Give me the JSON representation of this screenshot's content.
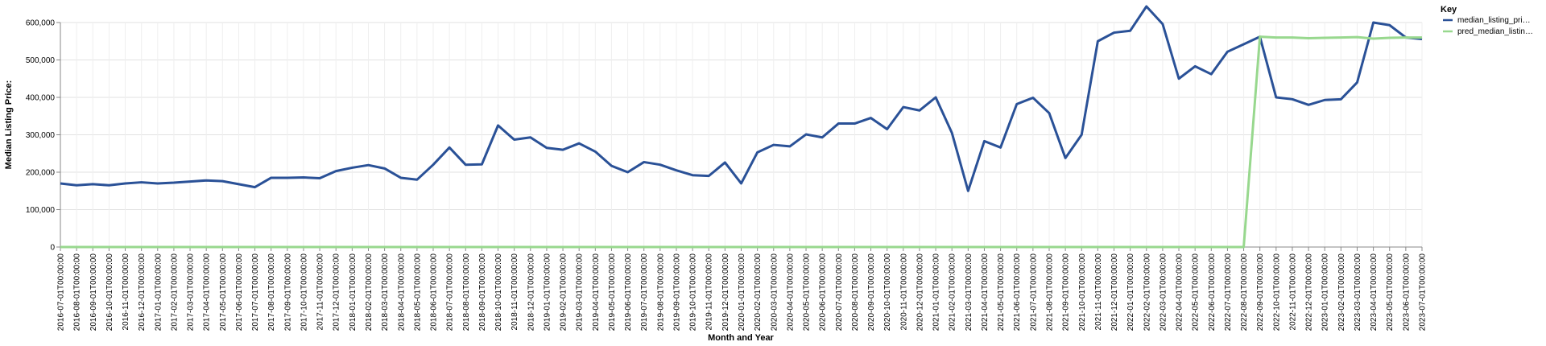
{
  "chart_data": {
    "type": "line",
    "xlabel": "Month and Year",
    "ylabel": "Median Listing Price:",
    "ylim": [
      0,
      600000
    ],
    "grid": true,
    "legend_placement": "right",
    "legend_title": "Key",
    "y_ticks": [
      "0",
      "100,000",
      "200,000",
      "300,000",
      "400,000",
      "500,000",
      "600,000"
    ],
    "x": [
      "2016-07-01T00:00:00",
      "2016-08-01T00:00:00",
      "2016-09-01T00:00:00",
      "2016-10-01T00:00:00",
      "2016-11-01T00:00:00",
      "2016-12-01T00:00:00",
      "2017-01-01T00:00:00",
      "2017-02-01T00:00:00",
      "2017-03-01T00:00:00",
      "2017-04-01T00:00:00",
      "2017-05-01T00:00:00",
      "2017-06-01T00:00:00",
      "2017-07-01T00:00:00",
      "2017-08-01T00:00:00",
      "2017-09-01T00:00:00",
      "2017-10-01T00:00:00",
      "2017-11-01T00:00:00",
      "2017-12-01T00:00:00",
      "2018-01-01T00:00:00",
      "2018-02-01T00:00:00",
      "2018-03-01T00:00:00",
      "2018-04-01T00:00:00",
      "2018-05-01T00:00:00",
      "2018-06-01T00:00:00",
      "2018-07-01T00:00:00",
      "2018-08-01T00:00:00",
      "2018-09-01T00:00:00",
      "2018-10-01T00:00:00",
      "2018-11-01T00:00:00",
      "2018-12-01T00:00:00",
      "2019-01-01T00:00:00",
      "2019-02-01T00:00:00",
      "2019-03-01T00:00:00",
      "2019-04-01T00:00:00",
      "2019-05-01T00:00:00",
      "2019-06-01T00:00:00",
      "2019-07-01T00:00:00",
      "2019-08-01T00:00:00",
      "2019-09-01T00:00:00",
      "2019-10-01T00:00:00",
      "2019-11-01T00:00:00",
      "2019-12-01T00:00:00",
      "2020-01-01T00:00:00",
      "2020-02-01T00:00:00",
      "2020-03-01T00:00:00",
      "2020-04-01T00:00:00",
      "2020-05-01T00:00:00",
      "2020-06-01T00:00:00",
      "2020-07-01T00:00:00",
      "2020-08-01T00:00:00",
      "2020-09-01T00:00:00",
      "2020-10-01T00:00:00",
      "2020-11-01T00:00:00",
      "2020-12-01T00:00:00",
      "2021-01-01T00:00:00",
      "2021-02-01T00:00:00",
      "2021-03-01T00:00:00",
      "2021-04-01T00:00:00",
      "2021-05-01T00:00:00",
      "2021-06-01T00:00:00",
      "2021-07-01T00:00:00",
      "2021-08-01T00:00:00",
      "2021-09-01T00:00:00",
      "2021-10-01T00:00:00",
      "2021-11-01T00:00:00",
      "2021-12-01T00:00:00",
      "2022-01-01T00:00:00",
      "2022-02-01T00:00:00",
      "2022-03-01T00:00:00",
      "2022-04-01T00:00:00",
      "2022-05-01T00:00:00",
      "2022-06-01T00:00:00",
      "2022-07-01T00:00:00",
      "2022-08-01T00:00:00",
      "2022-09-01T00:00:00",
      "2022-10-01T00:00:00",
      "2022-11-01T00:00:00",
      "2022-12-01T00:00:00",
      "2023-01-01T00:00:00",
      "2023-02-01T00:00:00",
      "2023-03-01T00:00:00",
      "2023-04-01T00:00:00",
      "2023-05-01T00:00:00",
      "2023-06-01T00:00:00",
      "2023-07-01T00:00:00"
    ],
    "series": [
      {
        "name": "median_listing_pri…",
        "color": "#2a5197",
        "values": [
          170000,
          165000,
          168000,
          165000,
          170000,
          173000,
          170000,
          172000,
          175000,
          178000,
          176000,
          168000,
          160000,
          185000,
          185000,
          186000,
          184000,
          203000,
          212000,
          219000,
          210000,
          185000,
          180000,
          220000,
          266000,
          220000,
          221000,
          325000,
          287000,
          293000,
          265000,
          260000,
          277000,
          255000,
          217000,
          200000,
          227000,
          220000,
          205000,
          192000,
          190000,
          226000,
          170000,
          253000,
          273000,
          269000,
          301000,
          293000,
          330000,
          330000,
          345000,
          315000,
          374000,
          365000,
          400000,
          305000,
          150000,
          283000,
          266000,
          382000,
          399000,
          358000,
          238000,
          300000,
          550000,
          573000,
          578000,
          643000,
          596000,
          450000,
          483000,
          462000,
          522000,
          542000,
          562000,
          400000,
          395000,
          380000,
          393000,
          395000,
          440000,
          600000,
          593000,
          560000,
          556000
        ]
      },
      {
        "name": "pred_median_listin…",
        "color": "#98d88e",
        "values": [
          0,
          0,
          0,
          0,
          0,
          0,
          0,
          0,
          0,
          0,
          0,
          0,
          0,
          0,
          0,
          0,
          0,
          0,
          0,
          0,
          0,
          0,
          0,
          0,
          0,
          0,
          0,
          0,
          0,
          0,
          0,
          0,
          0,
          0,
          0,
          0,
          0,
          0,
          0,
          0,
          0,
          0,
          0,
          0,
          0,
          0,
          0,
          0,
          0,
          0,
          0,
          0,
          0,
          0,
          0,
          0,
          0,
          0,
          0,
          0,
          0,
          0,
          0,
          0,
          0,
          0,
          0,
          0,
          0,
          0,
          0,
          0,
          0,
          0,
          562000,
          560000,
          560000,
          558000,
          559000,
          560000,
          561000,
          557000,
          559000,
          560000,
          560000
        ]
      }
    ]
  }
}
